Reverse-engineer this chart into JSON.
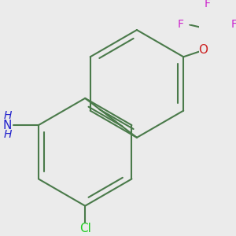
{
  "background_color": "#ebebeb",
  "bond_color": "#4a7a4a",
  "bond_width": 1.5,
  "atom_colors": {
    "N": "#2222cc",
    "O": "#cc2222",
    "F": "#cc22cc",
    "Cl": "#22cc22"
  },
  "font_size": 10,
  "fig_size": [
    3.0,
    3.0
  ],
  "dpi": 100
}
